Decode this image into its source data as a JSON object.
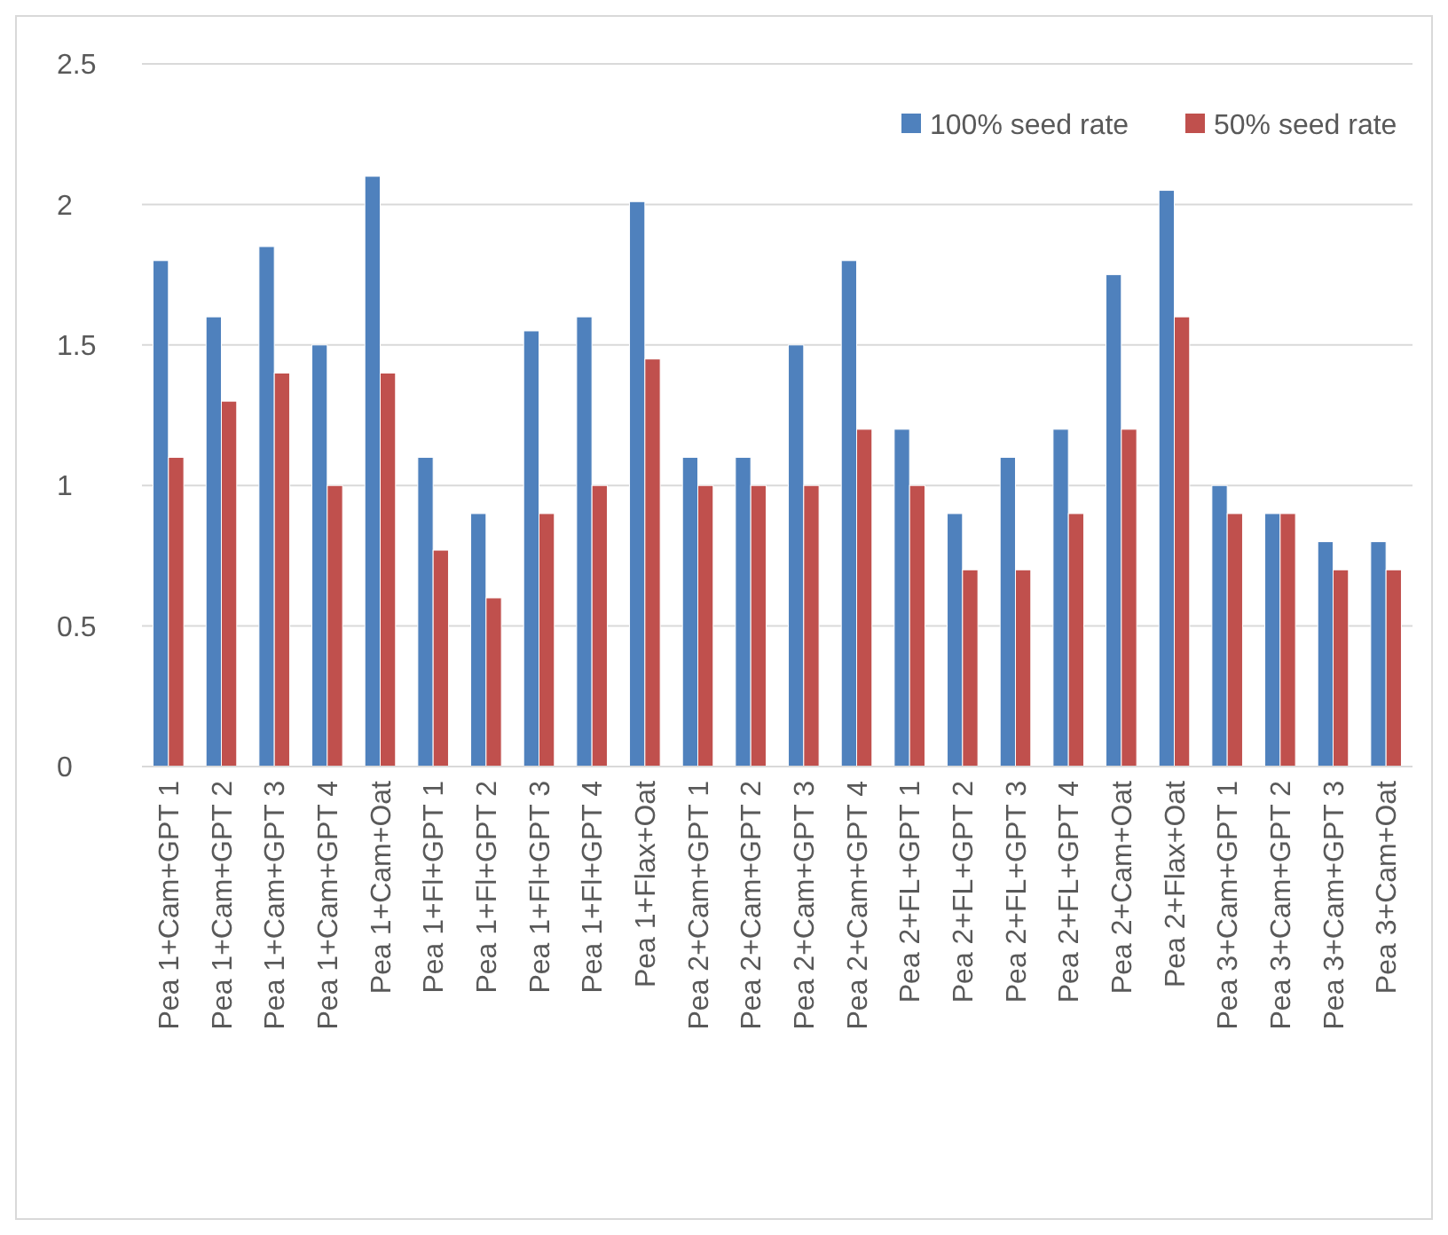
{
  "chart_data": {
    "type": "bar",
    "categories": [
      "Pea 1+Cam+GPT 1",
      "Pea 1+Cam+GPT 2",
      "Pea 1+Cam+GPT 3",
      "Pea 1+Cam+GPT 4",
      "Pea 1+Cam+Oat",
      "Pea 1+Fl+GPT 1",
      "Pea 1+Fl+GPT 2",
      "Pea 1+Fl+GPT 3",
      "Pea 1+Fl+GPT 4",
      "Pea 1+Flax+Oat",
      "Pea 2+Cam+GPT 1",
      "Pea 2+Cam+GPT 2",
      "Pea 2+Cam+GPT 3",
      "Pea 2+Cam+GPT 4",
      "Pea 2+FL+GPT 1",
      "Pea 2+FL+GPT 2",
      "Pea 2+FL+GPT 3",
      "Pea 2+FL+GPT 4",
      "Pea 2+Cam+Oat",
      "Pea 2+Flax+Oat",
      "Pea 3+Cam+GPT 1",
      "Pea 3+Cam+GPT 2",
      "Pea 3+Cam+GPT 3",
      "Pea 3+Cam+Oat"
    ],
    "series": [
      {
        "name": "100% seed rate",
        "color": "#4f81bd",
        "values": [
          1.8,
          1.6,
          1.85,
          1.5,
          2.1,
          1.1,
          0.9,
          1.55,
          1.6,
          2.01,
          1.1,
          1.1,
          1.5,
          1.8,
          1.2,
          0.9,
          1.1,
          1.2,
          1.75,
          2.05,
          1.0,
          0.9,
          0.8,
          0.8
        ]
      },
      {
        "name": "50% seed rate",
        "color": "#c0504d",
        "values": [
          1.1,
          1.3,
          1.4,
          1.0,
          1.4,
          0.77,
          0.6,
          0.9,
          1.0,
          1.45,
          1.0,
          1.0,
          1.0,
          1.2,
          1.0,
          0.7,
          0.7,
          0.9,
          1.2,
          1.6,
          0.9,
          0.9,
          0.7,
          0.7
        ]
      }
    ],
    "ylim": [
      0,
      2.5
    ],
    "yticks": [
      0,
      0.5,
      1,
      1.5,
      2,
      2.5
    ],
    "grid": "y",
    "legend": "top right"
  }
}
